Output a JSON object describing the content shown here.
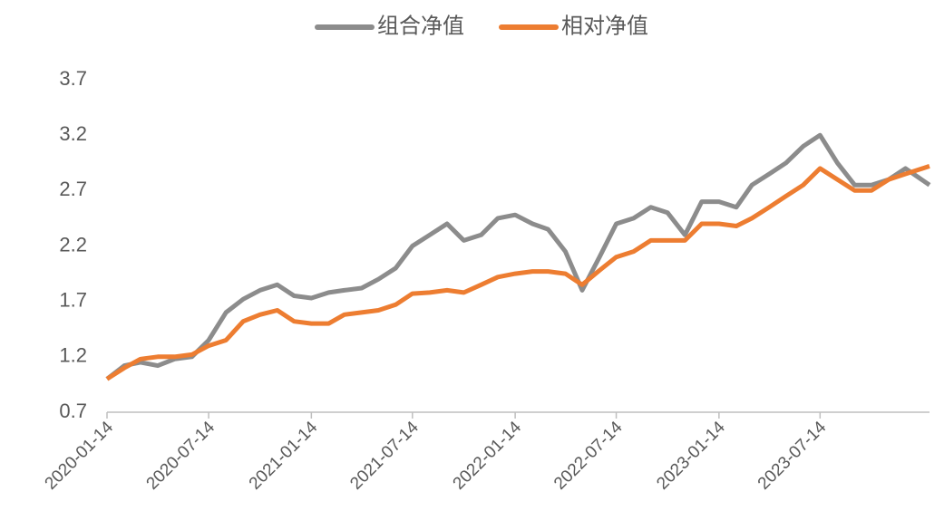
{
  "chart_data": {
    "type": "line",
    "x": [
      "2020-01-14",
      "2020-02-14",
      "2020-03-14",
      "2020-04-14",
      "2020-05-14",
      "2020-06-14",
      "2020-07-14",
      "2020-08-14",
      "2020-09-14",
      "2020-10-14",
      "2020-11-14",
      "2020-12-14",
      "2021-01-14",
      "2021-02-14",
      "2021-03-14",
      "2021-04-14",
      "2021-05-14",
      "2021-06-14",
      "2021-07-14",
      "2021-08-14",
      "2021-09-14",
      "2021-10-14",
      "2021-11-14",
      "2021-12-14",
      "2022-01-14",
      "2022-02-14",
      "2022-03-14",
      "2022-04-14",
      "2022-05-14",
      "2022-06-14",
      "2022-07-14",
      "2022-08-14",
      "2022-09-14",
      "2022-10-14",
      "2022-11-14",
      "2022-12-14",
      "2023-01-14",
      "2023-02-14",
      "2023-03-14",
      "2023-04-14",
      "2023-05-14",
      "2023-06-14",
      "2023-07-14",
      "2023-08-14",
      "2023-09-14",
      "2023-10-14",
      "2023-11-14",
      "2023-12-14",
      "2024-01-26"
    ],
    "series": [
      {
        "name": "组合净值",
        "color": "#8c8c8c",
        "values": [
          1.0,
          1.12,
          1.15,
          1.12,
          1.18,
          1.2,
          1.35,
          1.6,
          1.72,
          1.8,
          1.85,
          1.75,
          1.73,
          1.78,
          1.8,
          1.82,
          1.9,
          2.0,
          2.2,
          2.3,
          2.4,
          2.25,
          2.3,
          2.45,
          2.48,
          2.4,
          2.35,
          2.15,
          1.8,
          2.1,
          2.4,
          2.45,
          2.55,
          2.5,
          2.3,
          2.6,
          2.6,
          2.55,
          2.75,
          2.85,
          2.95,
          3.1,
          3.2,
          2.95,
          2.75,
          2.75,
          2.8,
          2.9,
          2.75
        ]
      },
      {
        "name": "相对净值",
        "color": "#ed7d31",
        "values": [
          1.0,
          1.1,
          1.18,
          1.2,
          1.2,
          1.22,
          1.3,
          1.35,
          1.52,
          1.58,
          1.62,
          1.52,
          1.5,
          1.5,
          1.58,
          1.6,
          1.62,
          1.67,
          1.77,
          1.78,
          1.8,
          1.78,
          1.85,
          1.92,
          1.95,
          1.97,
          1.97,
          1.95,
          1.85,
          1.98,
          2.1,
          2.15,
          2.25,
          2.25,
          2.25,
          2.4,
          2.4,
          2.38,
          2.45,
          2.55,
          2.65,
          2.75,
          2.9,
          2.8,
          2.7,
          2.7,
          2.8,
          2.85,
          2.92
        ]
      }
    ],
    "xlim": [
      "2020-01-14",
      "2024-01-26"
    ],
    "xticks": [
      "2020-01-14",
      "2020-07-14",
      "2021-01-14",
      "2021-07-14",
      "2022-01-14",
      "2022-07-14",
      "2023-01-14",
      "2023-07-14"
    ],
    "ylim": [
      0.7,
      3.7
    ],
    "yticks": [
      0.7,
      1.2,
      1.7,
      2.2,
      2.7,
      3.2,
      3.7
    ]
  }
}
